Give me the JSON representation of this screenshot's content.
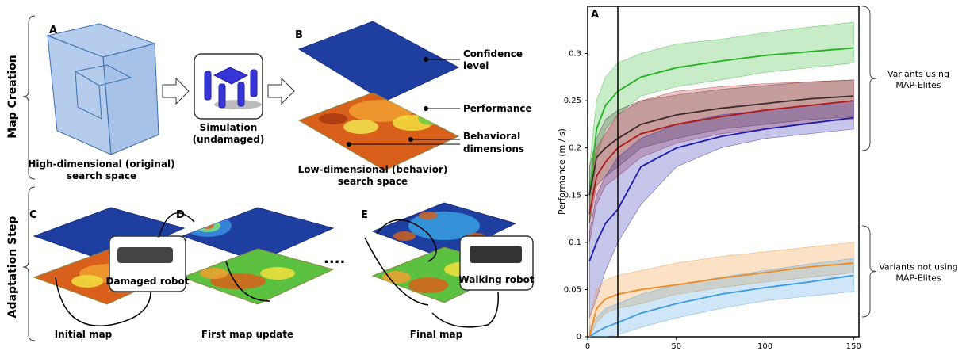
{
  "panels": {
    "map_creation": "Map Creation",
    "adaptation_step": "Adaptation Step"
  },
  "panel_letters": [
    "A",
    "B",
    "C",
    "D",
    "E"
  ],
  "search_space_caption": [
    "High-dimensional (original)",
    "search space"
  ],
  "simulation_caption": [
    "Simulation",
    "(undamaged)"
  ],
  "map_labels": {
    "confidence": [
      "Confidence",
      "level"
    ],
    "performance": "Performance",
    "behavioral": [
      "Behavioral",
      "dimensions"
    ]
  },
  "behavior_space_caption": [
    "Low-dimensional (behavior)",
    "search space"
  ],
  "robot_labels": [
    "Damaged robot",
    "Walking robot"
  ],
  "map_captions": [
    "Initial map",
    "First map update",
    "Final map"
  ],
  "ellipsis": "....",
  "chart_data": {
    "type": "line",
    "panel_letter": "A",
    "ylabel": "Performance (m / s)",
    "x": [
      1,
      5,
      10,
      17,
      30,
      50,
      75,
      100,
      125,
      150
    ],
    "xlim": [
      0,
      153
    ],
    "xticks": [
      0,
      50,
      100,
      150
    ],
    "ylim": [
      0,
      0.35
    ],
    "yticks": [
      0,
      0.05,
      0.1,
      0.15,
      0.2,
      0.25,
      0.3
    ],
    "vline": 17,
    "annotations": [
      [
        "Variants using",
        "MAP-Elites"
      ],
      [
        "Variants not using",
        "MAP-Elites"
      ]
    ],
    "series": [
      {
        "color": "#22b322",
        "values": [
          0.15,
          0.22,
          0.245,
          0.26,
          0.275,
          0.285,
          0.292,
          0.298,
          0.302,
          0.306
        ],
        "lower": [
          0.12,
          0.19,
          0.22,
          0.235,
          0.255,
          0.265,
          0.272,
          0.28,
          0.285,
          0.29
        ],
        "upper": [
          0.18,
          0.25,
          0.275,
          0.29,
          0.3,
          0.31,
          0.315,
          0.322,
          0.328,
          0.333
        ]
      },
      {
        "color": "#3a2a2a",
        "values": [
          0.15,
          0.19,
          0.2,
          0.21,
          0.225,
          0.235,
          0.242,
          0.247,
          0.252,
          0.255
        ],
        "lower": [
          0.12,
          0.16,
          0.17,
          0.18,
          0.2,
          0.21,
          0.22,
          0.225,
          0.23,
          0.233
        ],
        "upper": [
          0.18,
          0.21,
          0.23,
          0.24,
          0.25,
          0.256,
          0.262,
          0.266,
          0.27,
          0.272
        ]
      },
      {
        "color": "#b01818",
        "values": [
          0.13,
          0.17,
          0.185,
          0.2,
          0.215,
          0.225,
          0.233,
          0.24,
          0.245,
          0.25
        ],
        "lower": [
          0.1,
          0.14,
          0.16,
          0.17,
          0.19,
          0.205,
          0.215,
          0.22,
          0.227,
          0.23
        ],
        "upper": [
          0.16,
          0.2,
          0.215,
          0.235,
          0.25,
          0.26,
          0.265,
          0.268,
          0.27,
          0.272
        ]
      },
      {
        "color": "#1a1ab0",
        "values": [
          0.08,
          0.1,
          0.12,
          0.135,
          0.18,
          0.2,
          0.212,
          0.22,
          0.226,
          0.232
        ],
        "lower": [
          0.02,
          0.04,
          0.07,
          0.1,
          0.14,
          0.18,
          0.2,
          0.21,
          0.215,
          0.22
        ],
        "upper": [
          0.11,
          0.15,
          0.17,
          0.19,
          0.21,
          0.225,
          0.235,
          0.24,
          0.245,
          0.25
        ]
      },
      {
        "color": "#f08a20",
        "values": [
          0,
          0.03,
          0.04,
          0.045,
          0.05,
          0.055,
          0.062,
          0.068,
          0.074,
          0.078
        ],
        "lower": [
          0,
          0.015,
          0.025,
          0.03,
          0.035,
          0.045,
          0.052,
          0.058,
          0.063,
          0.068
        ],
        "upper": [
          0.02,
          0.05,
          0.06,
          0.065,
          0.07,
          0.078,
          0.085,
          0.09,
          0.095,
          0.1
        ]
      },
      {
        "color": "#3a9be0",
        "values": [
          0,
          0.005,
          0.01,
          0.015,
          0.025,
          0.035,
          0.045,
          0.052,
          0.058,
          0.065
        ],
        "lower": [
          0,
          0,
          0,
          0.002,
          0.01,
          0.02,
          0.03,
          0.038,
          0.043,
          0.048
        ],
        "upper": [
          0.01,
          0.02,
          0.03,
          0.035,
          0.045,
          0.055,
          0.063,
          0.07,
          0.077,
          0.083
        ]
      }
    ]
  }
}
